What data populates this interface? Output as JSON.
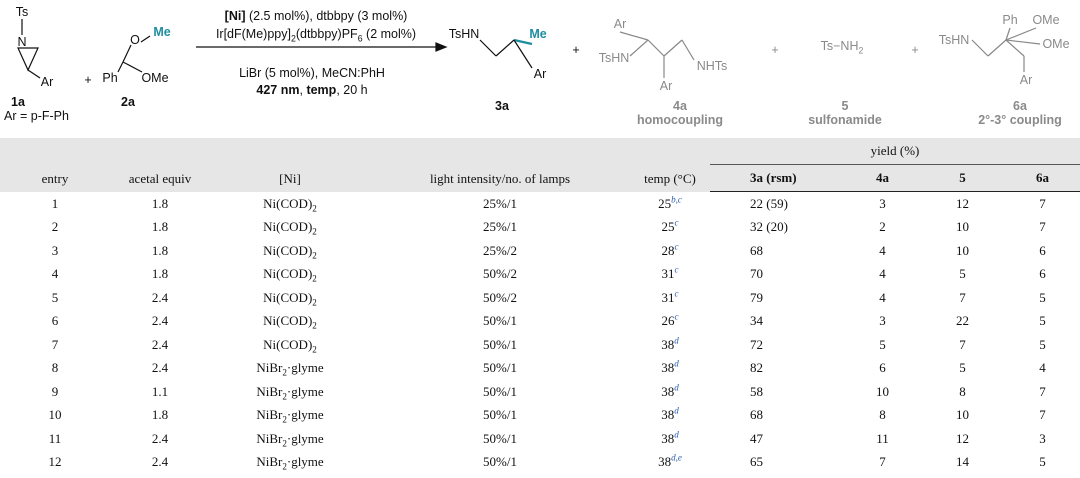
{
  "scheme": {
    "reactant_1": {
      "ts": "Ts",
      "n": "N",
      "ar": "Ar",
      "label": "1a",
      "note": "Ar = p-F-Ph"
    },
    "plus_signs": [
      "+",
      "+",
      "+",
      "+"
    ],
    "reactant_2": {
      "o": "O",
      "me": "Me",
      "ph": "Ph",
      "ome": "OMe",
      "label": "2a"
    },
    "conditions": [
      [
        {
          "text": "[Ni]",
          "style": "bold"
        },
        {
          "text": " (2.5 mol%), dtbbpy (3 mol%)"
        }
      ],
      [
        {
          "text": "Ir[dF(Me)ppy]"
        },
        {
          "text": "2",
          "style": "sub"
        },
        {
          "text": "(dtbbpy)PF"
        },
        {
          "text": "6",
          "style": "sub"
        },
        {
          "text": " (2 mol%)"
        }
      ],
      [
        {
          "text": "LiBr (5 mol%), MeCN:PhH"
        }
      ],
      [
        {
          "text": "427 nm",
          "style": "bold"
        },
        {
          "text": ", "
        },
        {
          "text": "temp",
          "style": "bold"
        },
        {
          "text": ", 20 h"
        }
      ]
    ],
    "product": {
      "tshn": "TsHN",
      "me": "Me",
      "ar": "Ar",
      "label": "3a"
    },
    "byproduct_4a": {
      "ar_top": "Ar",
      "tshn": "TsHN",
      "nhts": "NHTs",
      "ar_bottom": "Ar",
      "label": "4a",
      "caption": "homocoupling"
    },
    "byproduct_5": {
      "formula": [
        {
          "text": "Ts−NH"
        },
        {
          "text": "2",
          "style": "sub"
        }
      ],
      "label": "5",
      "caption": "sulfonamide"
    },
    "byproduct_6a": {
      "ph": "Ph",
      "ome_top": "OMe",
      "tshn": "TsHN",
      "ome_right": "OMe",
      "ar": "Ar",
      "label": "6a",
      "caption": "2°-3° coupling"
    }
  },
  "table": {
    "headers": [
      "entry",
      "acetal equiv",
      "[Ni]",
      "light intensity/no. of lamps",
      "temp (°C)"
    ],
    "group_header": "yield (%)",
    "subheaders": [
      "3a (rsm)",
      "4a",
      "5",
      "6a"
    ],
    "rows": [
      [
        "1",
        "1.8",
        [
          {
            "text": "Ni(COD)"
          },
          {
            "text": "2",
            "style": "sub"
          }
        ],
        "25%/1",
        [
          {
            "text": "25"
          },
          {
            "text": "b,c",
            "style": "sup"
          }
        ],
        "22 (59)",
        "3",
        "12",
        "7"
      ],
      [
        "2",
        "1.8",
        [
          {
            "text": "Ni(COD)"
          },
          {
            "text": "2",
            "style": "sub"
          }
        ],
        "25%/1",
        [
          {
            "text": "25"
          },
          {
            "text": "c",
            "style": "sup"
          }
        ],
        "32 (20)",
        "2",
        "10",
        "7"
      ],
      [
        "3",
        "1.8",
        [
          {
            "text": "Ni(COD)"
          },
          {
            "text": "2",
            "style": "sub"
          }
        ],
        "25%/2",
        [
          {
            "text": "28"
          },
          {
            "text": "c",
            "style": "sup"
          }
        ],
        "68",
        "4",
        "10",
        "6"
      ],
      [
        "4",
        "1.8",
        [
          {
            "text": "Ni(COD)"
          },
          {
            "text": "2",
            "style": "sub"
          }
        ],
        "50%/2",
        [
          {
            "text": "31"
          },
          {
            "text": "c",
            "style": "sup"
          }
        ],
        "70",
        "4",
        "5",
        "6"
      ],
      [
        "5",
        "2.4",
        [
          {
            "text": "Ni(COD)"
          },
          {
            "text": "2",
            "style": "sub"
          }
        ],
        "50%/2",
        [
          {
            "text": "31"
          },
          {
            "text": "c",
            "style": "sup"
          }
        ],
        "79",
        "4",
        "7",
        "5"
      ],
      [
        "6",
        "2.4",
        [
          {
            "text": "Ni(COD)"
          },
          {
            "text": "2",
            "style": "sub"
          }
        ],
        "50%/1",
        [
          {
            "text": "26"
          },
          {
            "text": "c",
            "style": "sup"
          }
        ],
        "34",
        "3",
        "22",
        "5"
      ],
      [
        "7",
        "2.4",
        [
          {
            "text": "Ni(COD)"
          },
          {
            "text": "2",
            "style": "sub"
          }
        ],
        "50%/1",
        [
          {
            "text": "38"
          },
          {
            "text": "d",
            "style": "sup"
          }
        ],
        "72",
        "5",
        "7",
        "5"
      ],
      [
        "8",
        "2.4",
        [
          {
            "text": "NiBr"
          },
          {
            "text": "2",
            "style": "sub"
          },
          {
            "text": "·glyme"
          }
        ],
        "50%/1",
        [
          {
            "text": "38"
          },
          {
            "text": "d",
            "style": "sup"
          }
        ],
        "82",
        "6",
        "5",
        "4"
      ],
      [
        "9",
        "1.1",
        [
          {
            "text": "NiBr"
          },
          {
            "text": "2",
            "style": "sub"
          },
          {
            "text": "·glyme"
          }
        ],
        "50%/1",
        [
          {
            "text": "38"
          },
          {
            "text": "d",
            "style": "sup"
          }
        ],
        "58",
        "10",
        "8",
        "7"
      ],
      [
        "10",
        "1.8",
        [
          {
            "text": "NiBr"
          },
          {
            "text": "2",
            "style": "sub"
          },
          {
            "text": "·glyme"
          }
        ],
        "50%/1",
        [
          {
            "text": "38"
          },
          {
            "text": "d",
            "style": "sup"
          }
        ],
        "68",
        "8",
        "10",
        "7"
      ],
      [
        "11",
        "2.4",
        [
          {
            "text": "NiBr"
          },
          {
            "text": "2",
            "style": "sub"
          },
          {
            "text": "·glyme"
          }
        ],
        "50%/1",
        [
          {
            "text": "38"
          },
          {
            "text": "d",
            "style": "sup"
          }
        ],
        "47",
        "11",
        "12",
        "3"
      ],
      [
        "12",
        "2.4",
        [
          {
            "text": "NiBr"
          },
          {
            "text": "2",
            "style": "sub"
          },
          {
            "text": "·glyme"
          }
        ],
        "50%/1",
        [
          {
            "text": "38"
          },
          {
            "text": "d,e",
            "style": "sup"
          }
        ],
        "65",
        "7",
        "14",
        "5"
      ]
    ]
  }
}
